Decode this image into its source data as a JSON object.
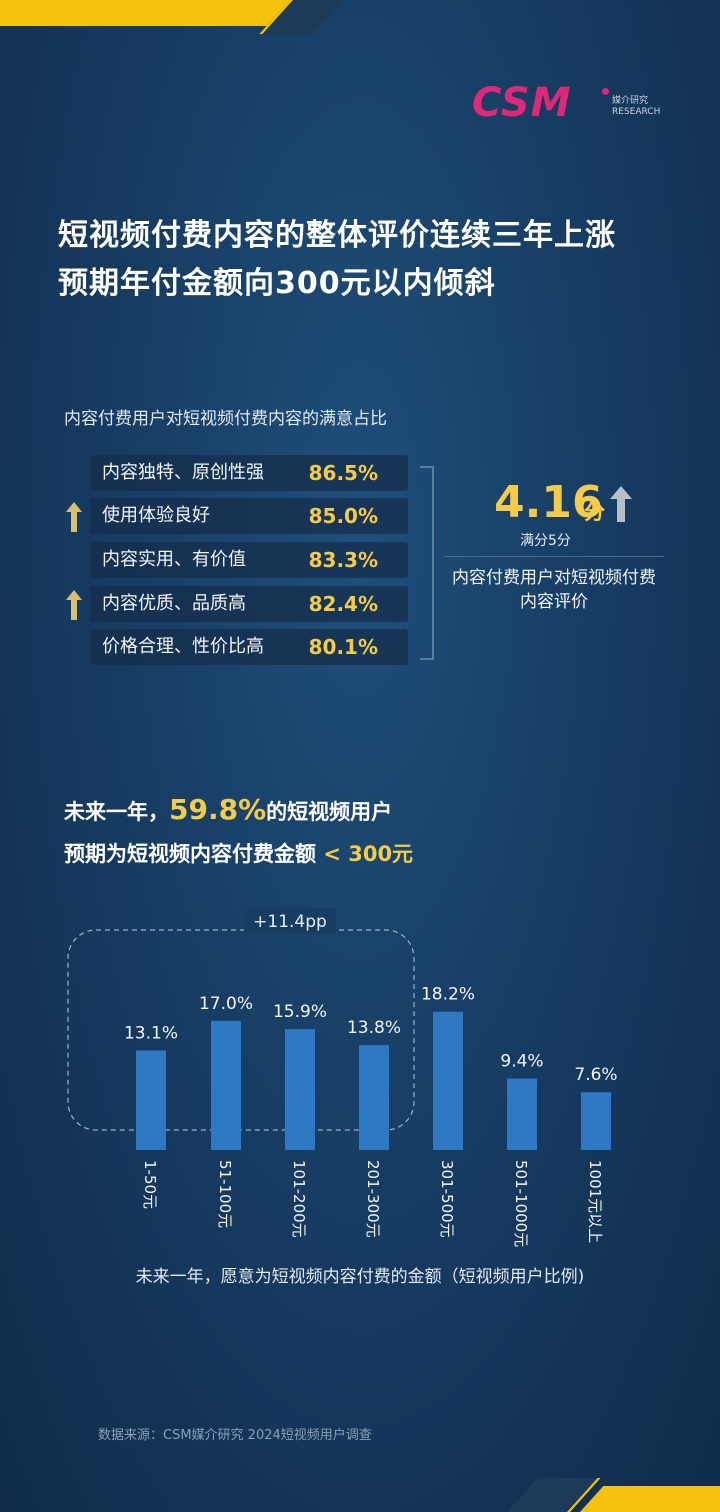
{
  "brand": {
    "logo_text": "CSM",
    "logo_sub": "媒介研究 RESEARCH",
    "accent_color": "#f5cb4a",
    "logo_color": "#e0287a"
  },
  "headline": {
    "line1": "短视频付费内容的整体评价连续三年上涨",
    "line2": "预期年付金额向300元以内倾斜"
  },
  "satisfaction": {
    "title": "内容付费用户对短视频付费内容的满意占比",
    "items": [
      {
        "label": "内容独特、原创性强",
        "value": "86.5%",
        "arrow": false
      },
      {
        "label": "使用体验良好",
        "value": "85.0%",
        "arrow": true
      },
      {
        "label": "内容实用、有价值",
        "value": "83.3%",
        "arrow": false
      },
      {
        "label": "内容优质、品质高",
        "value": "82.4%",
        "arrow": true
      },
      {
        "label": "价格合理、性价比高",
        "value": "80.1%",
        "arrow": false
      }
    ],
    "score": "4.16",
    "score_unit": "分",
    "score_note": "满分5分",
    "score_caption": "内容付费用户对短视频付费内容评价"
  },
  "spending": {
    "line1_prefix": "未来一年，",
    "line1_highlight": "59.8%",
    "line1_suffix": "的短视频用户",
    "line2_prefix": "预期为短视频内容付费金额",
    "line2_highlight": "< 300元"
  },
  "chart_data": {
    "type": "bar",
    "categories": [
      "1-50元",
      "51-100元",
      "101-200元",
      "201-300元",
      "301-500元",
      "501-1000元",
      "1001元以上"
    ],
    "values": [
      13.1,
      17.0,
      15.9,
      13.8,
      18.2,
      9.4,
      7.6
    ],
    "value_labels": [
      "13.1%",
      "17.0%",
      "15.9%",
      "13.8%",
      "18.2%",
      "9.4%",
      "7.6%"
    ],
    "annotation": "+11.4pp",
    "title": "未来一年，愿意为短视频内容付费的金额（短视频用户比例)",
    "ylim": [
      0,
      20
    ],
    "bar_color": "#2f78c4",
    "grid": false
  },
  "footer": {
    "source": "数据来源：CSM媒介研究 2024短视频用户调查"
  }
}
